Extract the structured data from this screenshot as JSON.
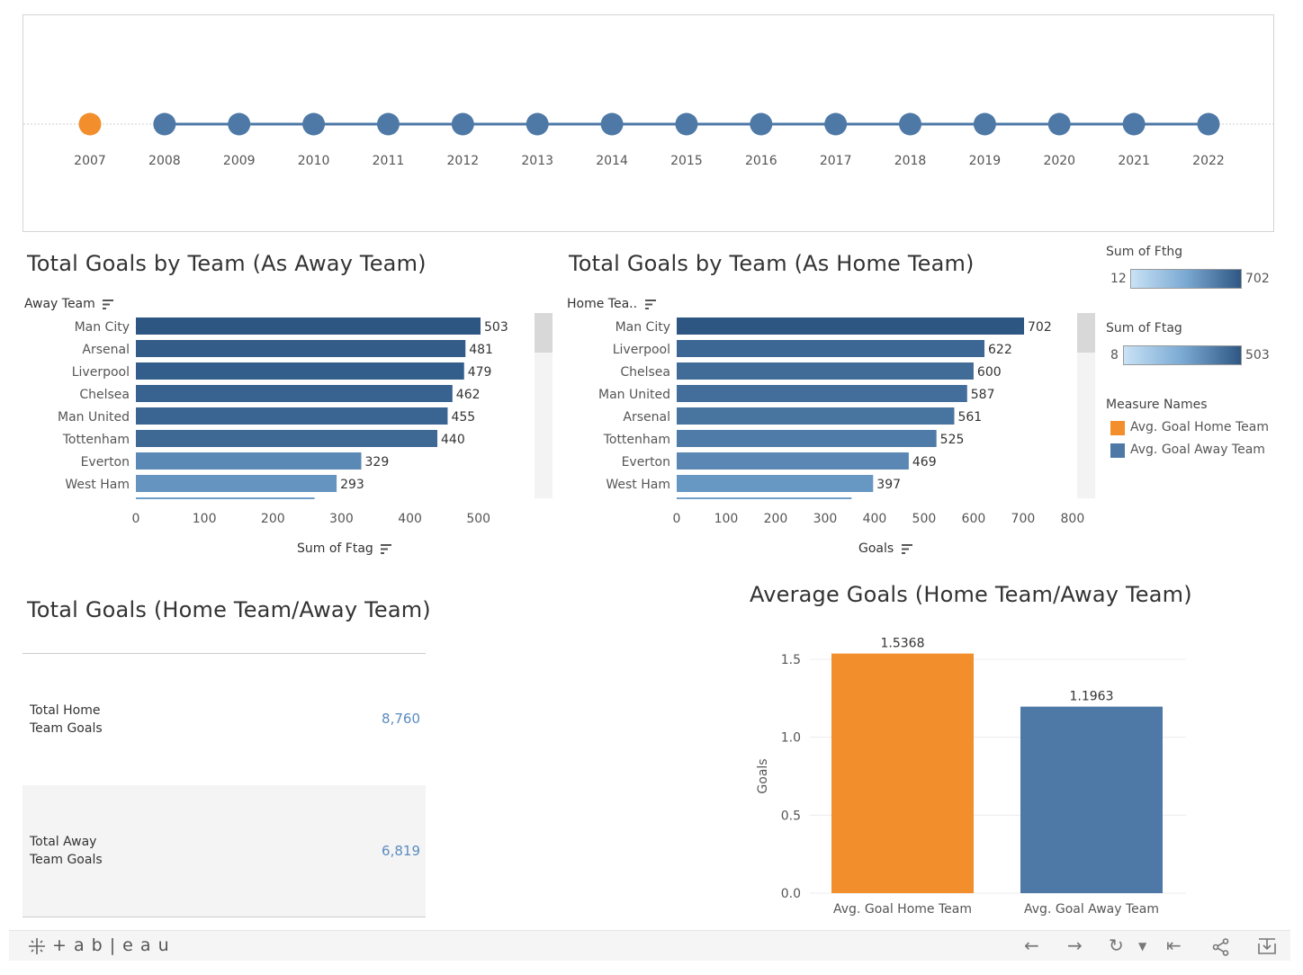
{
  "timeline": {
    "years": [
      "2007",
      "2008",
      "2009",
      "2010",
      "2011",
      "2012",
      "2013",
      "2014",
      "2015",
      "2016",
      "2017",
      "2018",
      "2019",
      "2020",
      "2021",
      "2022"
    ],
    "selected": "2007",
    "colors": {
      "selected": "#f28e2b",
      "default": "#4e79a7"
    }
  },
  "away_chart": {
    "title": "Total Goals by Team (As Away Team)",
    "axis_header": "Away Team",
    "xlabel": "Sum of Ftag",
    "chart_data": {
      "type": "bar",
      "orientation": "horizontal",
      "categories": [
        "Man City",
        "Arsenal",
        "Liverpool",
        "Chelsea",
        "Man United",
        "Tottenham",
        "Everton",
        "West Ham"
      ],
      "values": [
        503,
        481,
        479,
        462,
        455,
        440,
        329,
        293
      ],
      "value_labels": [
        "503",
        "481",
        "479",
        "462",
        "455",
        "440",
        "329",
        "293"
      ],
      "xticks": [
        "0",
        "100",
        "200",
        "300",
        "400",
        "500"
      ],
      "xlim": [
        0,
        570
      ],
      "color_range": [
        8,
        503
      ]
    }
  },
  "home_chart": {
    "title": "Total Goals by Team (As Home Team)",
    "axis_header": "Home Tea..",
    "xlabel": "Goals",
    "chart_data": {
      "type": "bar",
      "orientation": "horizontal",
      "categories": [
        "Man City",
        "Liverpool",
        "Chelsea",
        "Man United",
        "Arsenal",
        "Tottenham",
        "Everton",
        "West Ham"
      ],
      "values": [
        702,
        622,
        600,
        587,
        561,
        525,
        469,
        397
      ],
      "value_labels": [
        "702",
        "622",
        "600",
        "587",
        "561",
        "525",
        "469",
        "397"
      ],
      "xticks": [
        "0",
        "100",
        "200",
        "300",
        "400",
        "500",
        "600",
        "700",
        "800"
      ],
      "xlim": [
        0,
        800
      ],
      "color_range": [
        12,
        702
      ]
    }
  },
  "legend": {
    "fthg": {
      "title": "Sum of Fthg",
      "min": "12",
      "max": "702"
    },
    "ftag": {
      "title": "Sum of Ftag",
      "min": "8",
      "max": "503"
    },
    "measures": {
      "title": "Measure Names",
      "items": [
        {
          "label": "Avg. Goal Home Team",
          "color": "#f28e2b"
        },
        {
          "label": "Avg. Goal Away Team",
          "color": "#4e79a7"
        }
      ]
    }
  },
  "totals": {
    "title": "Total Goals (Home Team/Away Team)",
    "rows": [
      {
        "label": "Total Home Team Goals",
        "value": "8,760"
      },
      {
        "label": "Total Away Team Goals",
        "value": "6,819"
      }
    ]
  },
  "avg_chart": {
    "title": "Average Goals (Home Team/Away Team)",
    "chart_data": {
      "type": "bar",
      "categories": [
        "Avg. Goal Home Team",
        "Avg. Goal Away Team"
      ],
      "values": [
        1.5368,
        1.1963
      ],
      "value_labels": [
        "1.5368",
        "1.1963"
      ],
      "colors": [
        "#f28e2b",
        "#4e79a7"
      ],
      "ylabel": "Goals",
      "yticks": [
        "0.0",
        "0.5",
        "1.0",
        "1.5"
      ],
      "ylim": [
        0,
        1.6
      ]
    }
  },
  "footer": {
    "brand": "+ a b | e a u",
    "icons": [
      "undo-icon",
      "redo-icon",
      "revert-icon",
      "reset-icon",
      "share-icon",
      "download-icon"
    ]
  }
}
